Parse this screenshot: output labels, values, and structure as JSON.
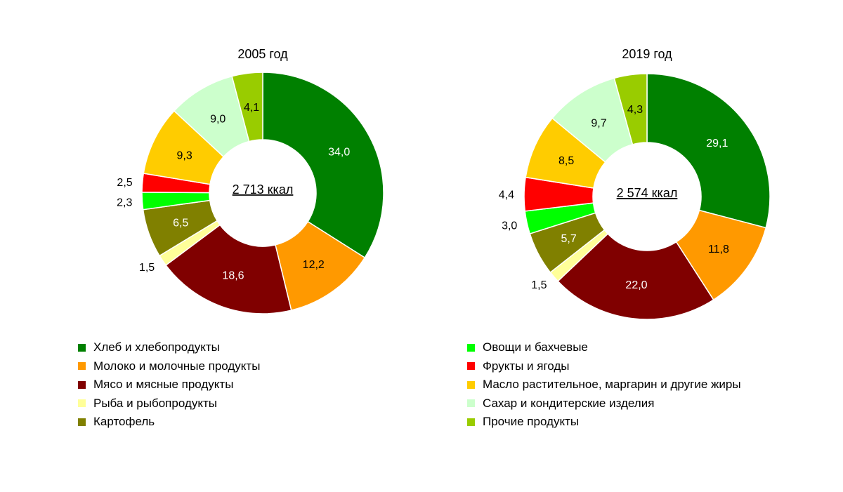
{
  "colors": {
    "bread": "#008000",
    "milk": "#ff9900",
    "meat": "#800000",
    "fish": "#ffff99",
    "potato": "#808000",
    "vegetables": "#00ff00",
    "fruits": "#ff0000",
    "oils": "#ffcc00",
    "sugar": "#ccffcc",
    "other": "#99cc00"
  },
  "legend": [
    {
      "key": "bread",
      "label": "Хлеб и хлебопродукты"
    },
    {
      "key": "milk",
      "label": "Молоко и молочные продукты"
    },
    {
      "key": "meat",
      "label": "Мясо и мясные продукты"
    },
    {
      "key": "fish",
      "label": "Рыба и рыбопродукты"
    },
    {
      "key": "potato",
      "label": "Картофель"
    },
    {
      "key": "vegetables",
      "label": "Овощи и бахчевые"
    },
    {
      "key": "fruits",
      "label": "Фрукты и ягоды"
    },
    {
      "key": "oils",
      "label": "Масло растительное, маргарин и другие жиры"
    },
    {
      "key": "sugar",
      "label": "Сахар и кондитерские изделия"
    },
    {
      "key": "other",
      "label": "Прочие продукты"
    }
  ],
  "chart_data": [
    {
      "type": "pie",
      "variant": "donut",
      "title": "2005 год",
      "center_label": "2 713 ккал",
      "slices": [
        {
          "key": "bread",
          "value": 34.0,
          "label": "34,0"
        },
        {
          "key": "milk",
          "value": 12.2,
          "label": "12,2"
        },
        {
          "key": "meat",
          "value": 18.6,
          "label": "18,6"
        },
        {
          "key": "fish",
          "value": 1.5,
          "label": "1,5"
        },
        {
          "key": "potato",
          "value": 6.5,
          "label": "6,5"
        },
        {
          "key": "vegetables",
          "value": 2.3,
          "label": "2,3"
        },
        {
          "key": "fruits",
          "value": 2.5,
          "label": "2,5"
        },
        {
          "key": "oils",
          "value": 9.3,
          "label": "9,3"
        },
        {
          "key": "sugar",
          "value": 9.0,
          "label": "9,0"
        },
        {
          "key": "other",
          "value": 4.1,
          "label": "4,1"
        }
      ]
    },
    {
      "type": "pie",
      "variant": "donut",
      "title": "2019 год",
      "center_label": "2 574 ккал",
      "slices": [
        {
          "key": "bread",
          "value": 29.1,
          "label": "29,1"
        },
        {
          "key": "milk",
          "value": 11.8,
          "label": "11,8"
        },
        {
          "key": "meat",
          "value": 22.0,
          "label": "22,0"
        },
        {
          "key": "fish",
          "value": 1.5,
          "label": "1,5"
        },
        {
          "key": "potato",
          "value": 5.7,
          "label": "5,7"
        },
        {
          "key": "vegetables",
          "value": 3.0,
          "label": "3,0"
        },
        {
          "key": "fruits",
          "value": 4.4,
          "label": "4,4"
        },
        {
          "key": "oils",
          "value": 8.5,
          "label": "8,5"
        },
        {
          "key": "sugar",
          "value": 9.7,
          "label": "9,7"
        },
        {
          "key": "other",
          "value": 4.3,
          "label": "4,3"
        }
      ]
    }
  ]
}
